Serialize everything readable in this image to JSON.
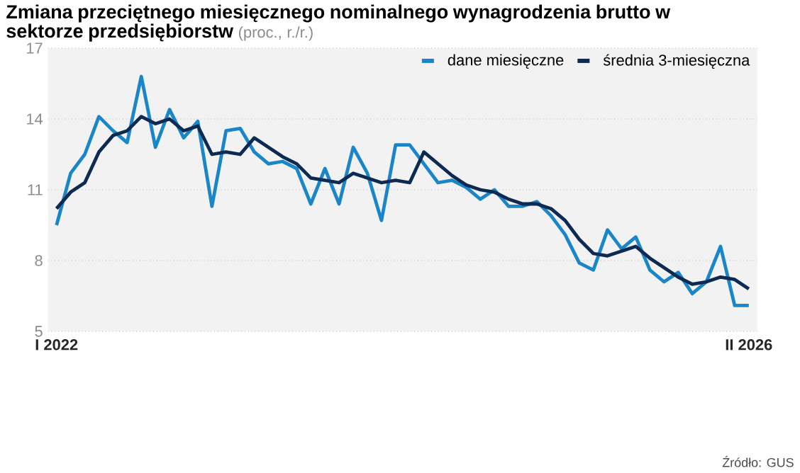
{
  "chart_data": {
    "type": "line",
    "title": "Zmiana przeciętnego miesięcznego nominalnego wynagrodzenia brutto w sektorze przedsiębiorstw",
    "subtitle": "(proc., r./r.)",
    "categories": [
      "I 2022",
      null,
      null,
      null,
      null,
      null,
      null,
      null,
      null,
      null,
      null,
      null,
      null,
      null,
      null,
      null,
      null,
      null,
      null,
      null,
      null,
      null,
      null,
      null,
      null,
      null,
      null,
      null,
      null,
      null,
      null,
      null,
      null,
      null,
      null,
      null,
      null,
      null,
      null,
      null,
      null,
      null,
      null,
      null,
      null,
      null,
      null,
      null,
      null,
      "II 2026"
    ],
    "series": [
      {
        "name": "dane miesięczne",
        "color": "#1a86c7",
        "values": [
          9.5,
          11.7,
          12.5,
          14.1,
          13.5,
          13.0,
          15.8,
          12.8,
          14.4,
          13.2,
          13.9,
          10.3,
          13.5,
          13.6,
          12.6,
          12.1,
          12.2,
          11.9,
          10.4,
          11.9,
          10.4,
          12.8,
          11.7,
          9.7,
          12.9,
          12.9,
          12.1,
          11.3,
          11.4,
          11.1,
          10.6,
          11.0,
          10.3,
          10.3,
          10.5,
          9.9,
          9.1,
          7.9,
          7.6,
          9.3,
          8.5,
          9.0,
          7.6,
          7.1,
          7.5,
          6.6,
          7.1,
          8.6,
          6.1,
          6.1
        ]
      },
      {
        "name": "średnia 3-miesięczna",
        "color": "#0d2b52",
        "values": [
          10.2,
          10.9,
          11.3,
          12.6,
          13.3,
          13.5,
          14.1,
          13.8,
          14.0,
          13.5,
          13.7,
          12.5,
          12.6,
          12.5,
          13.2,
          12.8,
          12.4,
          12.1,
          11.5,
          11.4,
          11.3,
          11.7,
          11.5,
          11.3,
          11.4,
          11.3,
          12.6,
          12.1,
          11.6,
          11.2,
          11.0,
          10.9,
          10.6,
          10.4,
          10.4,
          10.2,
          9.7,
          8.9,
          8.3,
          8.2,
          8.4,
          8.6,
          8.1,
          7.7,
          7.3,
          7.0,
          7.1,
          7.3,
          7.2,
          6.8
        ]
      }
    ],
    "ylim": [
      5,
      17
    ],
    "yticks": [
      5,
      8,
      11,
      14,
      17
    ],
    "grid": "y",
    "legend": "top right",
    "annotations": [
      "Źródło: GUS"
    ]
  }
}
